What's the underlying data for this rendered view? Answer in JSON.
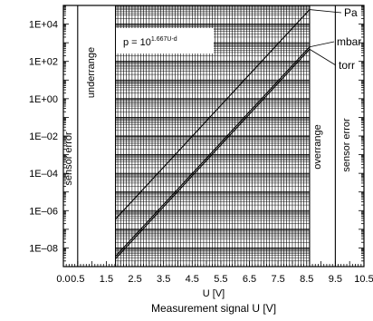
{
  "chart_data": {
    "type": "line",
    "title": "",
    "xlabel": "U [V]",
    "caption": "Measurement signal U [V]",
    "ylabel": "",
    "y_scale": "log",
    "xlim": [
      0.0,
      10.5
    ],
    "ylim_exponent": [
      -9,
      5
    ],
    "x_tick_labels": [
      "0.0",
      "0.5",
      "1.5",
      "2.5",
      "3.5",
      "4.5",
      "5.5",
      "6.5",
      "7.5",
      "8.5",
      "9.5",
      "10.5"
    ],
    "y_tick_labels": [
      "1E+04",
      "1E+02",
      "1E+00",
      "1E–02",
      "1E–04",
      "1E–06",
      "1E–08"
    ],
    "formula": {
      "base": "p = 10",
      "exponent": "1.667U-d"
    },
    "regions": {
      "sensor_error_low": "sensor error",
      "underrange": "underrange",
      "overrange": "overrange",
      "sensor_error_high": "sensor error"
    },
    "region_boundaries_V": [
      0.5,
      1.82,
      8.6,
      9.5
    ],
    "grid": true,
    "series": [
      {
        "name": "Pa",
        "x": [
          1.82,
          8.6
        ],
        "y": [
          3.52e-07,
          60000.0
        ]
      },
      {
        "name": "mbar",
        "x": [
          1.82,
          8.6
        ],
        "y": [
          3.52e-09,
          600.0
        ]
      },
      {
        "name": "torr",
        "x": [
          1.82,
          8.6
        ],
        "y": [
          2.64e-09,
          450.0
        ]
      }
    ]
  }
}
